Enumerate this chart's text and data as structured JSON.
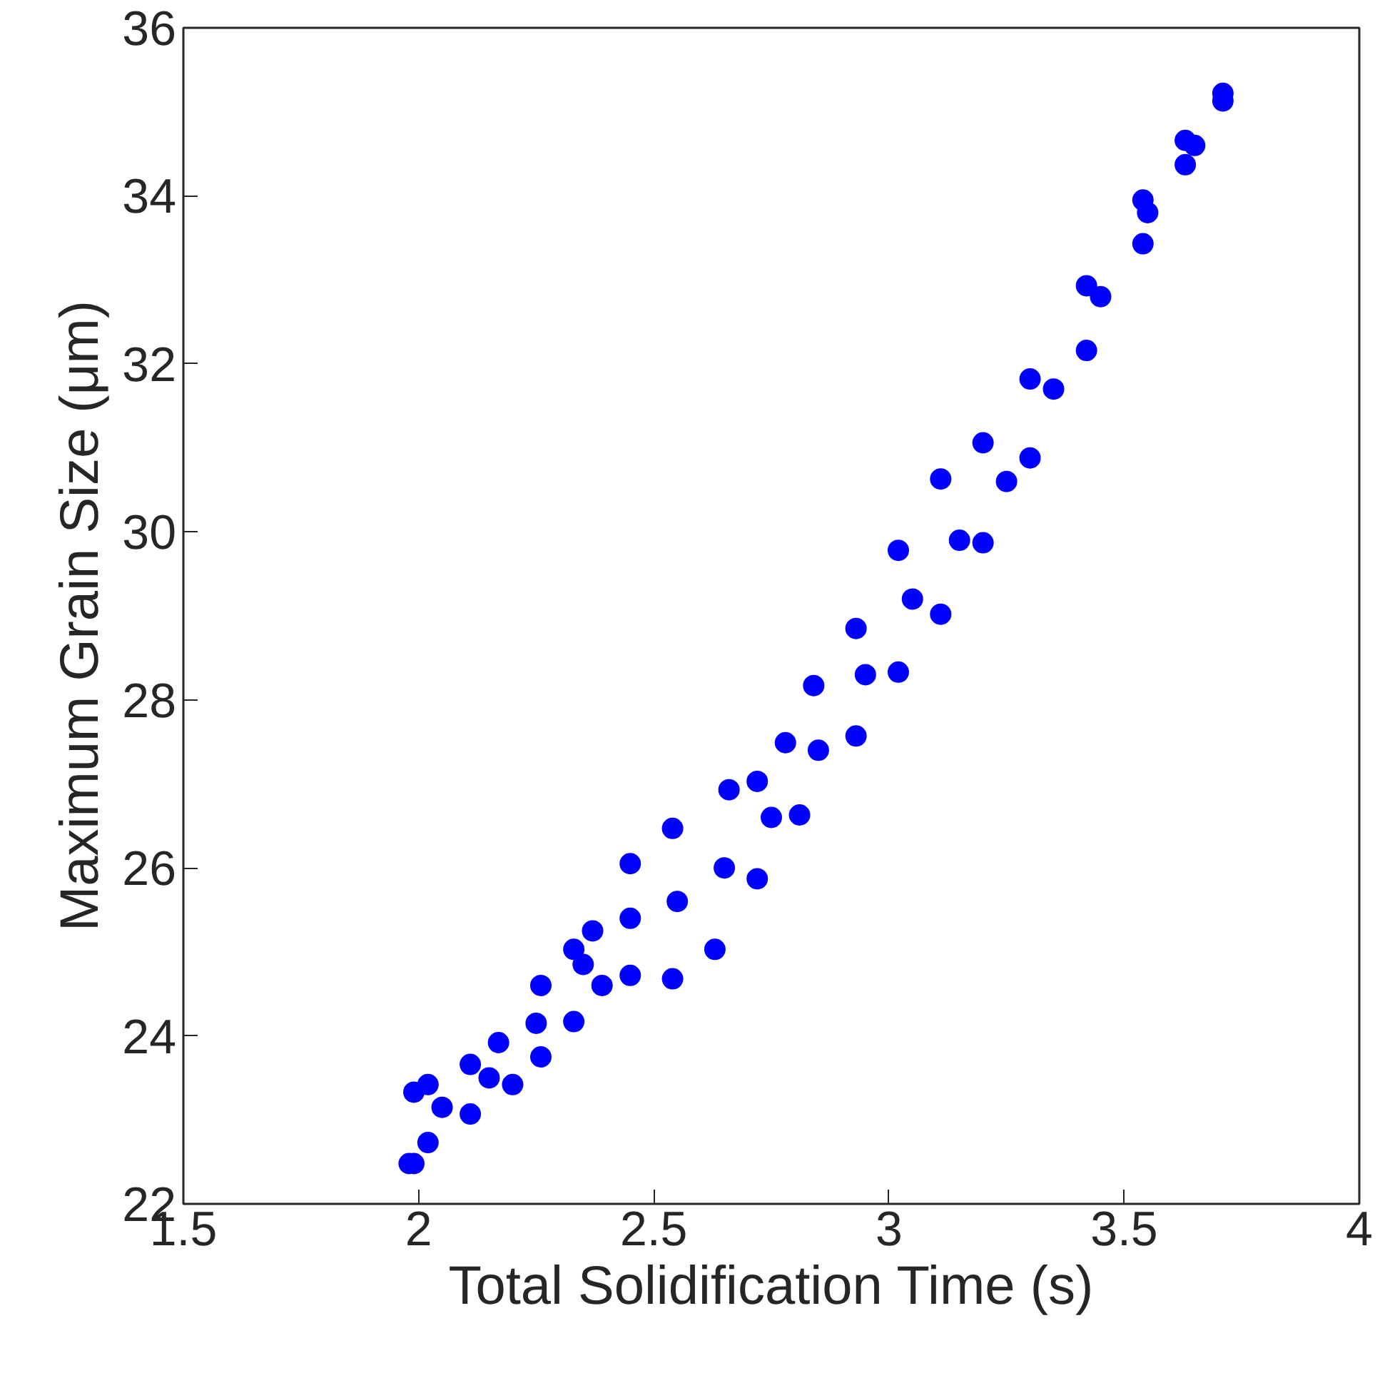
{
  "chart_data": {
    "type": "scatter",
    "xlabel": "Total Solidification Time (s)",
    "ylabel": "Maximum Grain Size (μm)",
    "xlim": [
      1.5,
      4
    ],
    "ylim": [
      22,
      36
    ],
    "xticks": [
      1.5,
      2,
      2.5,
      3,
      3.5,
      4
    ],
    "yticks": [
      22,
      24,
      26,
      28,
      30,
      32,
      34,
      36
    ],
    "grid": false,
    "marker": "circle",
    "series": [
      {
        "color": "#0000ff",
        "x": [
          1.98,
          1.99,
          2.02,
          2.11,
          2.17,
          2.26,
          2.33,
          2.37,
          2.45,
          2.54,
          2.66,
          2.72,
          2.78,
          2.84,
          2.93,
          3.02,
          3.11,
          3.2,
          3.3,
          3.42,
          3.54,
          3.63,
          3.71,
          1.99,
          2.02,
          2.11,
          2.2,
          2.26,
          2.33,
          2.39,
          2.45,
          2.54,
          2.63,
          2.72,
          2.81,
          2.93,
          3.02,
          3.11,
          3.2,
          3.3,
          3.42,
          3.54,
          3.63,
          3.71,
          2.05,
          2.15,
          2.25,
          2.35,
          2.45,
          2.55,
          2.65,
          2.75,
          2.85,
          2.95,
          3.05,
          3.15,
          3.25,
          3.35,
          3.45,
          3.55,
          3.65
        ],
        "values": [
          22.48,
          23.33,
          23.42,
          23.66,
          23.92,
          24.6,
          25.03,
          25.25,
          26.05,
          26.47,
          26.93,
          27.03,
          27.49,
          28.17,
          28.85,
          29.78,
          30.63,
          31.06,
          31.82,
          32.93,
          33.95,
          34.66,
          35.22,
          22.48,
          22.73,
          23.07,
          23.42,
          23.75,
          24.17,
          24.6,
          24.72,
          24.68,
          25.03,
          25.87,
          26.63,
          27.57,
          28.33,
          29.02,
          29.87,
          30.88,
          32.16,
          33.43,
          34.37,
          35.13,
          23.15,
          23.5,
          24.15,
          24.85,
          25.4,
          25.6,
          26.0,
          26.6,
          27.4,
          28.3,
          29.2,
          29.9,
          30.6,
          31.7,
          32.8,
          33.8,
          34.6
        ]
      }
    ]
  }
}
